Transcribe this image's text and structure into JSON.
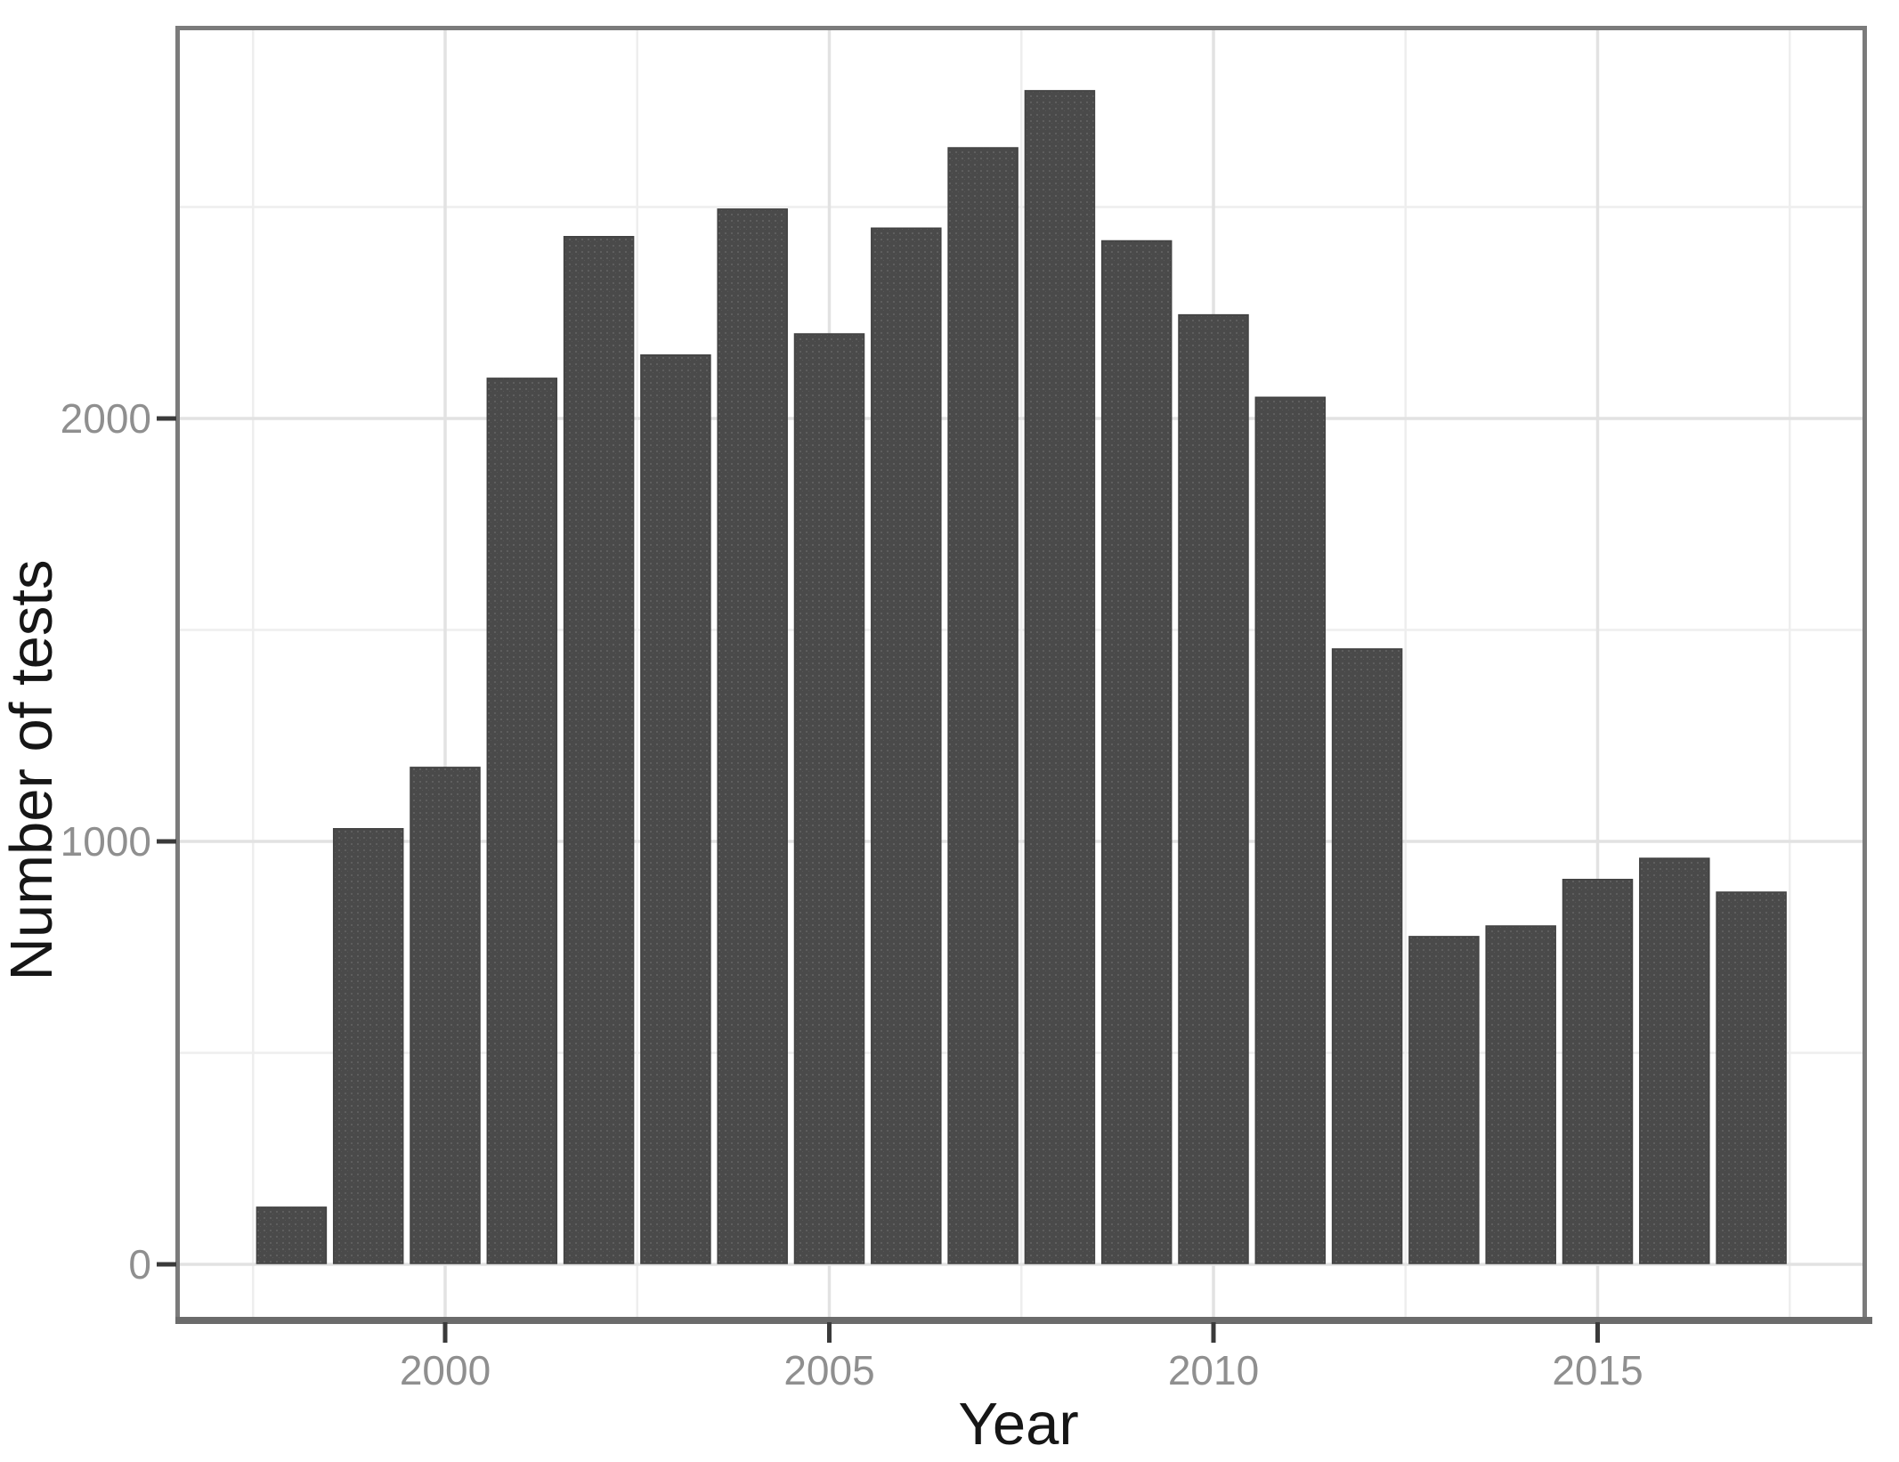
{
  "chart_data": {
    "type": "bar",
    "title": "",
    "xlabel": "Year",
    "ylabel": "Number of tests",
    "categories": [
      1998,
      1999,
      2000,
      2001,
      2002,
      2003,
      2004,
      2005,
      2006,
      2007,
      2008,
      2009,
      2010,
      2011,
      2012,
      2013,
      2014,
      2015,
      2016,
      2017
    ],
    "values": [
      135,
      1030,
      1175,
      2095,
      2430,
      2150,
      2495,
      2200,
      2450,
      2640,
      2775,
      2420,
      2245,
      2050,
      1455,
      775,
      800,
      910,
      960,
      880
    ],
    "x_major_ticks": [
      2000,
      2005,
      2010,
      2015
    ],
    "x_minor_ticks": [
      1997.5,
      2002.5,
      2007.5,
      2012.5,
      2017.5
    ],
    "y_major_ticks": [
      0,
      1000,
      2000
    ],
    "y_minor_ticks": [
      500,
      1500,
      2500
    ],
    "xlim": [
      1996.5,
      2018.4
    ],
    "ylim": [
      0,
      2900
    ],
    "grid": true,
    "legend": false,
    "bar_color": "#4a4a4a",
    "bar_speckle_color": "#5e5e5e",
    "major_grid_color": "#e2e2e2",
    "minor_grid_color": "#eeeeee",
    "panel_border_color": "#7b7b7b",
    "tick_mark_color": "#3a3a3a",
    "tick_label_color": "#8f8f8f",
    "axis_title_color": "#161616",
    "background_color": "#ffffff"
  }
}
